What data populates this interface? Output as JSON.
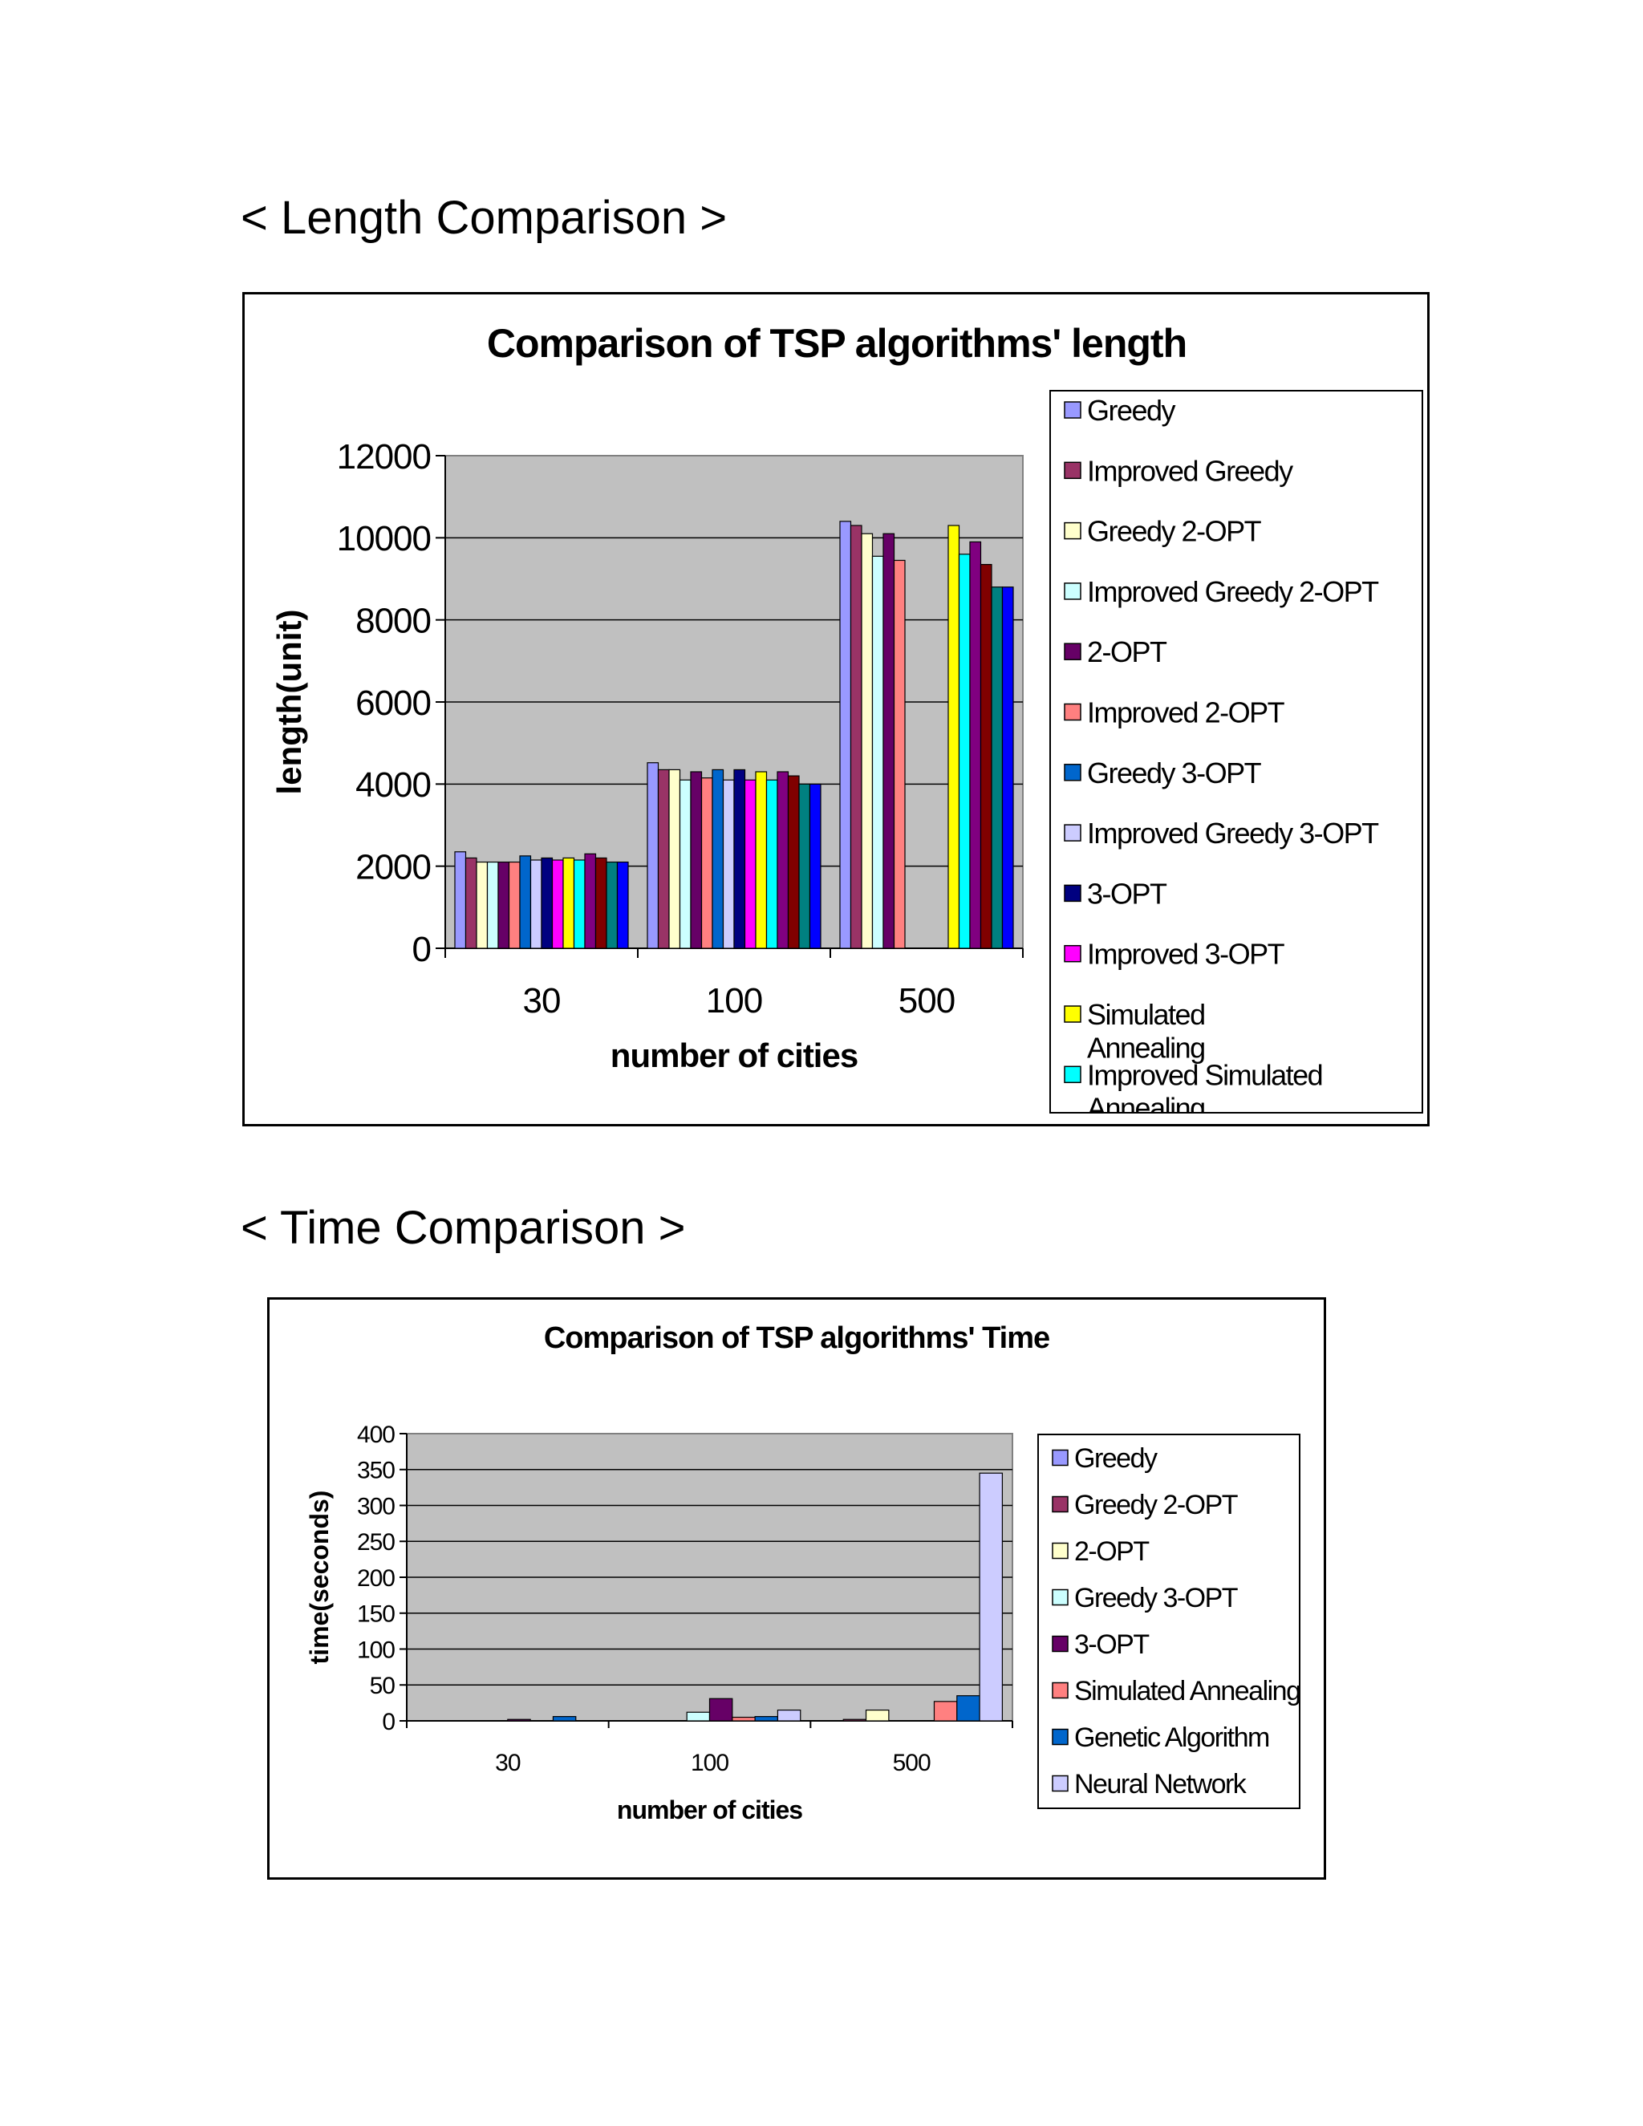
{
  "headings": {
    "length": "< Length Comparison >",
    "time": "< Time Comparison >"
  },
  "chart_data": [
    {
      "type": "bar",
      "title": "Comparison of TSP algorithms' length",
      "xlabel": "number of cities",
      "ylabel": "length(unit)",
      "ylim": [
        0,
        12000
      ],
      "yticks": [
        "0",
        "2000",
        "4000",
        "6000",
        "8000",
        "10000",
        "12000"
      ],
      "categories": [
        "30",
        "100",
        "500"
      ],
      "grid": true,
      "plot_bg": "#c0c0c0",
      "legend_position": "right",
      "legend_truncated_label": "Annealing",
      "series": [
        {
          "name": "Greedy",
          "color": "#9999ff",
          "values": [
            2350,
            4520,
            10400
          ]
        },
        {
          "name": "Improved Greedy",
          "color": "#993366",
          "values": [
            2200,
            4350,
            10300
          ]
        },
        {
          "name": "Greedy 2-OPT",
          "color": "#ffffcc",
          "values": [
            2100,
            4350,
            10100
          ]
        },
        {
          "name": "Improved Greedy 2-OPT",
          "color": "#ccffff",
          "values": [
            2100,
            4100,
            9550
          ]
        },
        {
          "name": "2-OPT",
          "color": "#660066",
          "values": [
            2100,
            4300,
            10100
          ]
        },
        {
          "name": "Improved 2-OPT",
          "color": "#ff8080",
          "values": [
            2100,
            4150,
            9450
          ]
        },
        {
          "name": "Greedy 3-OPT",
          "color": "#0066cc",
          "values": [
            2250,
            4350,
            null
          ]
        },
        {
          "name": "Improved Greedy 3-OPT",
          "color": "#ccccff",
          "values": [
            2150,
            4100,
            null
          ]
        },
        {
          "name": "3-OPT",
          "color": "#000080",
          "values": [
            2200,
            4350,
            null
          ]
        },
        {
          "name": "Improved 3-OPT",
          "color": "#ff00ff",
          "values": [
            2150,
            4100,
            null
          ]
        },
        {
          "name": "Simulated Annealing",
          "color": "#ffff00",
          "values": [
            2200,
            4300,
            10300
          ]
        },
        {
          "name": "Improved Simulated Annealing",
          "color": "#00ffff",
          "values": [
            2150,
            4100,
            9600
          ]
        },
        {
          "name": "",
          "color": "#800080",
          "values": [
            2300,
            4300,
            9900
          ]
        },
        {
          "name": "",
          "color": "#800000",
          "values": [
            2200,
            4200,
            9350
          ]
        },
        {
          "name": "",
          "color": "#008080",
          "values": [
            2100,
            4000,
            8800
          ]
        },
        {
          "name": "",
          "color": "#0000ff",
          "values": [
            2100,
            4000,
            8800
          ]
        }
      ]
    },
    {
      "type": "bar",
      "title": "Comparison of TSP algorithms' Time",
      "xlabel": "number of cities",
      "ylabel": "time(seconds)",
      "ylim": [
        0,
        400
      ],
      "yticks": [
        "0",
        "50",
        "100",
        "150",
        "200",
        "250",
        "300",
        "350",
        "400"
      ],
      "categories": [
        "30",
        "100",
        "500"
      ],
      "grid": true,
      "plot_bg": "#c0c0c0",
      "legend_position": "right",
      "series": [
        {
          "name": "Greedy",
          "color": "#9999ff",
          "values": [
            0,
            0,
            0
          ]
        },
        {
          "name": "Greedy 2-OPT",
          "color": "#993366",
          "values": [
            0,
            0,
            2
          ]
        },
        {
          "name": "2-OPT",
          "color": "#ffffcc",
          "values": [
            0,
            0,
            15
          ]
        },
        {
          "name": "Greedy 3-OPT",
          "color": "#ccffff",
          "values": [
            0,
            12,
            0
          ]
        },
        {
          "name": "3-OPT",
          "color": "#660066",
          "values": [
            2,
            31,
            0
          ]
        },
        {
          "name": "Simulated Annealing",
          "color": "#ff8080",
          "values": [
            0,
            5,
            27
          ]
        },
        {
          "name": "Genetic Algorithm",
          "color": "#0066cc",
          "values": [
            6,
            6,
            35
          ]
        },
        {
          "name": "Neural Network",
          "color": "#ccccff",
          "values": [
            0,
            15,
            345
          ]
        }
      ]
    }
  ]
}
